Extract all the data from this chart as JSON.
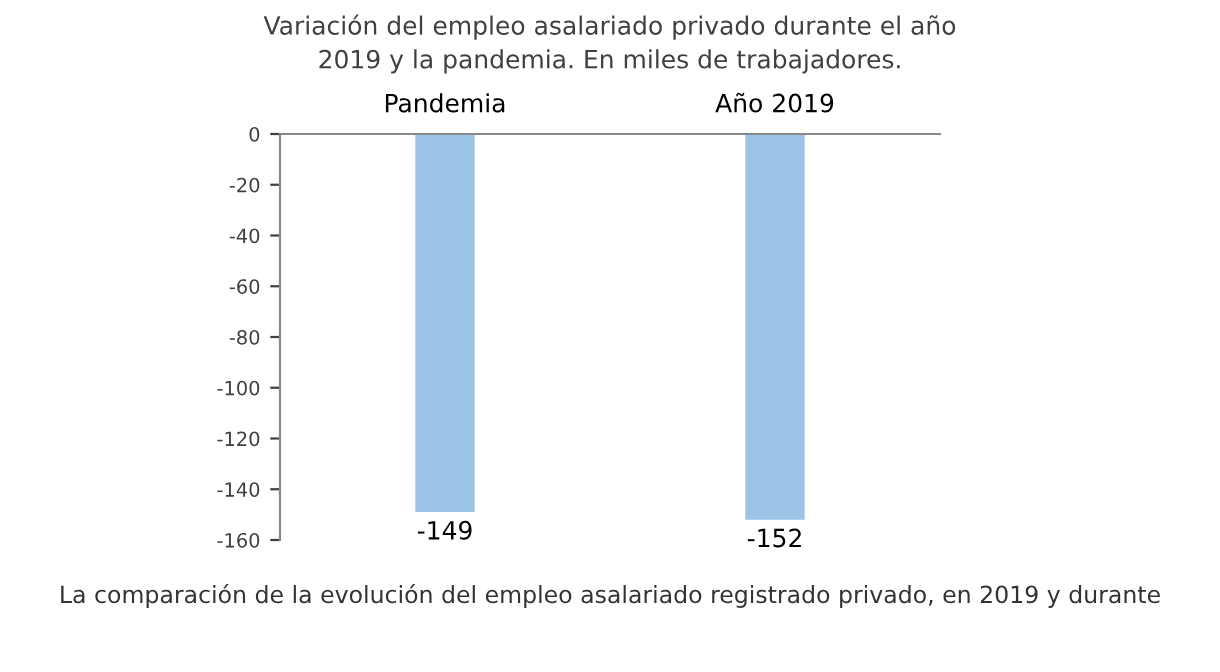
{
  "chart_data": {
    "type": "bar",
    "title": "Variación del empleo asalariado privado durante el año\n2019 y la pandemia. En miles de trabajadores.",
    "categories": [
      "Pandemia",
      "Año 2019"
    ],
    "values": [
      -149,
      -152
    ],
    "color": "#9dc3e6",
    "ylim": [
      -160,
      0
    ],
    "yticks": [
      -160,
      -140,
      -120,
      -100,
      -80,
      -60,
      -40,
      -20,
      0
    ],
    "data_labels": true,
    "grid": false,
    "annotations": [
      "La comparación de la evolución del empleo asalariado registrado privado, en 2019 y durante"
    ]
  }
}
